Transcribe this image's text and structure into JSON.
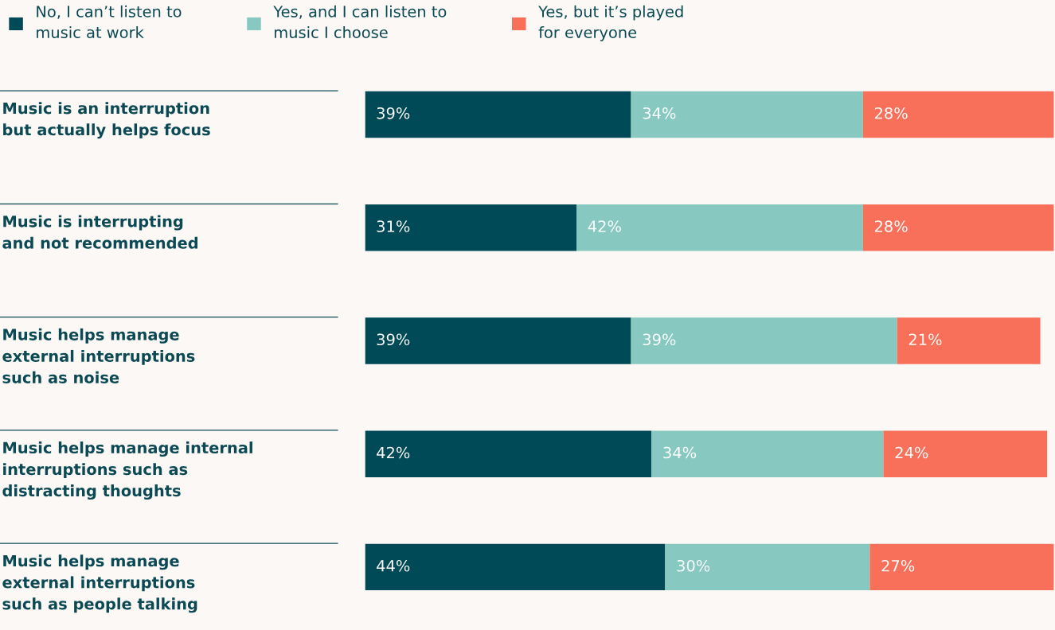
{
  "chart_data": {
    "type": "bar",
    "orientation": "horizontal",
    "stacked": true,
    "legend": "top",
    "categories": [
      "Music is an interruption\nbut actually helps focus",
      "Music is interrupting\nand not recommended",
      "Music helps manage\nexternal interruptions\nsuch as noise",
      "Music helps manage internal\ninterruptions such as\ndistracting thoughts",
      "Music helps manage\nexternal interruptions\nsuch as people talking"
    ],
    "series": [
      {
        "name": "No, I can’t listen to\nmusic at work",
        "color": "#004a57",
        "values": [
          39,
          31,
          39,
          42,
          44
        ],
        "value_labels": [
          "39%",
          "31%",
          "39%",
          "42%",
          "44%"
        ]
      },
      {
        "name": "Yes, and I can listen to\nmusic I choose",
        "color": "#87c9c1",
        "values": [
          34,
          42,
          39,
          34,
          30
        ],
        "value_labels": [
          "34%",
          "42%",
          "39%",
          "34%",
          "30%"
        ]
      },
      {
        "name": "Yes, but it’s played\nfor everyone",
        "color": "#f87059",
        "values": [
          28,
          28,
          21,
          24,
          27
        ],
        "value_labels": [
          "28%",
          "28%",
          "21%",
          "24%",
          "27%"
        ]
      }
    ]
  }
}
